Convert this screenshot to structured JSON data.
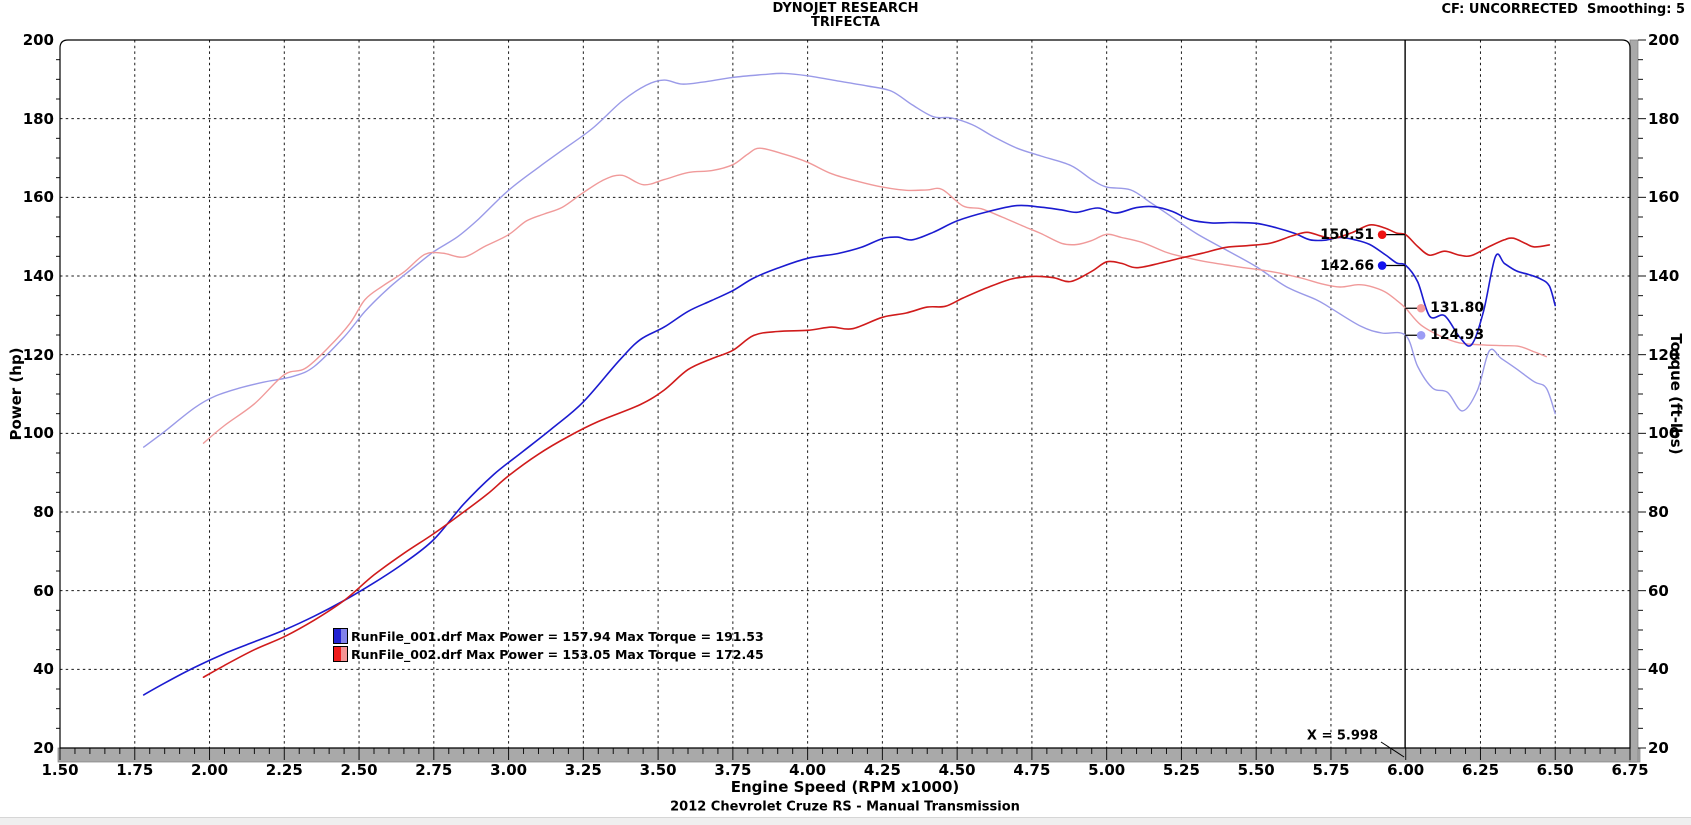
{
  "header": {
    "title1": "DYNOJET RESEARCH",
    "title2": "TRIFECTA",
    "cf": "CF: UNCORRECTED  Smoothing: 5"
  },
  "footer": {
    "xlabel": "Engine Speed (RPM x1000)",
    "caption": "2012 Chevrolet Cruze RS - Manual Transmission"
  },
  "axes": {
    "left_label": "Power (hp)",
    "right_label": "Torque (ft-lbs)",
    "x_ticks": [
      "1.50",
      "1.75",
      "2.00",
      "2.25",
      "2.50",
      "2.75",
      "3.00",
      "3.25",
      "3.50",
      "3.75",
      "4.00",
      "4.25",
      "4.50",
      "4.75",
      "5.00",
      "5.25",
      "5.50",
      "5.75",
      "6.00",
      "6.25",
      "6.50",
      "6.75"
    ],
    "y_ticks": [
      "200",
      "180",
      "160",
      "140",
      "120",
      "100",
      "80",
      "60",
      "40",
      "20"
    ],
    "x_min": 1.5,
    "x_max": 6.75,
    "y_min": 20,
    "y_max": 200,
    "x_major_step": 0.25,
    "x_minor_step": 0.05,
    "y_major_step": 20,
    "y_minor_step": 5
  },
  "legend": [
    {
      "text": "RunFile_001.drf Max Power = 157.94 Max Torque = 191.53",
      "swatch": [
        "#2222d2",
        "#8282ea"
      ]
    },
    {
      "text": "RunFile_002.drf Max Power = 153.05 Max Torque = 172.45",
      "swatch": [
        "#ee1c1c",
        "#f59494"
      ]
    }
  ],
  "cursor": {
    "x_label": "X = 5.998",
    "x_value": 5.998,
    "markers": [
      {
        "label": "150.51",
        "value": 150.51,
        "series": "RunFile_002.drf Power",
        "color": "#ee1212",
        "side": "left"
      },
      {
        "label": "142.66",
        "value": 142.66,
        "series": "RunFile_001.drf Power",
        "color": "#1212ee",
        "side": "left"
      },
      {
        "label": "131.80",
        "value": 131.8,
        "series": "RunFile_002.drf Torque",
        "color": "#f59c9c",
        "side": "right"
      },
      {
        "label": "124.93",
        "value": 124.93,
        "series": "RunFile_001.drf Torque",
        "color": "#9c9cf5",
        "side": "right"
      }
    ]
  },
  "chart_data": {
    "type": "line",
    "title": "DYNOJET RESEARCH TRIFECTA",
    "xlabel": "Engine Speed (RPM x1000)",
    "ylabel_left": "Power (hp)",
    "ylabel_right": "Torque (ft-lbs)",
    "xlim": [
      1.5,
      6.75
    ],
    "ylim": [
      20,
      200
    ],
    "grid": true,
    "cursor_x": 5.998,
    "series": [
      {
        "name": "RunFile_001.drf Power",
        "unit": "hp",
        "color": "#1b1bd0",
        "width": 1.6,
        "max": 157.94,
        "points": [
          [
            1.78,
            33.5
          ],
          [
            1.85,
            36.5
          ],
          [
            1.95,
            40.5
          ],
          [
            2.05,
            44
          ],
          [
            2.15,
            47
          ],
          [
            2.25,
            50
          ],
          [
            2.35,
            53.5
          ],
          [
            2.45,
            57.5
          ],
          [
            2.55,
            62
          ],
          [
            2.65,
            67
          ],
          [
            2.75,
            73
          ],
          [
            2.85,
            82
          ],
          [
            2.95,
            89.5
          ],
          [
            3.05,
            95.5
          ],
          [
            3.15,
            101.5
          ],
          [
            3.25,
            108
          ],
          [
            3.37,
            118.5
          ],
          [
            3.44,
            123.8
          ],
          [
            3.52,
            127
          ],
          [
            3.6,
            131
          ],
          [
            3.68,
            133.8
          ],
          [
            3.75,
            136.3
          ],
          [
            3.82,
            139.5
          ],
          [
            3.9,
            142
          ],
          [
            4.0,
            144.5
          ],
          [
            4.1,
            145.7
          ],
          [
            4.18,
            147.3
          ],
          [
            4.25,
            149.5
          ],
          [
            4.3,
            149.9
          ],
          [
            4.35,
            149.2
          ],
          [
            4.42,
            151.1
          ],
          [
            4.5,
            154
          ],
          [
            4.6,
            156.3
          ],
          [
            4.7,
            157.9
          ],
          [
            4.78,
            157.5
          ],
          [
            4.85,
            156.8
          ],
          [
            4.9,
            156.2
          ],
          [
            4.97,
            157.3
          ],
          [
            5.03,
            156
          ],
          [
            5.1,
            157.4
          ],
          [
            5.16,
            157.6
          ],
          [
            5.22,
            156.4
          ],
          [
            5.28,
            154.3
          ],
          [
            5.35,
            153.5
          ],
          [
            5.42,
            153.6
          ],
          [
            5.5,
            153.4
          ],
          [
            5.57,
            152.2
          ],
          [
            5.63,
            150.8
          ],
          [
            5.68,
            149.2
          ],
          [
            5.73,
            149.1
          ],
          [
            5.78,
            149.8
          ],
          [
            5.83,
            149.2
          ],
          [
            5.88,
            148
          ],
          [
            5.93,
            145.5
          ],
          [
            5.97,
            143.3
          ],
          [
            6.0,
            142.7
          ],
          [
            6.04,
            138.5
          ],
          [
            6.08,
            129.8
          ],
          [
            6.13,
            129.9
          ],
          [
            6.18,
            124.5
          ],
          [
            6.22,
            122.5
          ],
          [
            6.26,
            131
          ],
          [
            6.3,
            144.9
          ],
          [
            6.33,
            143.2
          ],
          [
            6.37,
            141.3
          ],
          [
            6.41,
            140.4
          ],
          [
            6.45,
            139.3
          ],
          [
            6.48,
            137.5
          ],
          [
            6.5,
            132.5
          ]
        ]
      },
      {
        "name": "RunFile_002.drf Power",
        "unit": "hp",
        "color": "#d01b1b",
        "width": 1.6,
        "max": 153.05,
        "points": [
          [
            1.98,
            38
          ],
          [
            2.05,
            41
          ],
          [
            2.15,
            45
          ],
          [
            2.25,
            48.3
          ],
          [
            2.35,
            52.5
          ],
          [
            2.45,
            57.5
          ],
          [
            2.55,
            64
          ],
          [
            2.65,
            69.5
          ],
          [
            2.75,
            74.5
          ],
          [
            2.85,
            80
          ],
          [
            2.93,
            84.6
          ],
          [
            3.0,
            89.2
          ],
          [
            3.1,
            94.7
          ],
          [
            3.2,
            99.2
          ],
          [
            3.3,
            103
          ],
          [
            3.44,
            107.3
          ],
          [
            3.52,
            111
          ],
          [
            3.6,
            116.2
          ],
          [
            3.68,
            119
          ],
          [
            3.75,
            121.1
          ],
          [
            3.82,
            124.9
          ],
          [
            3.9,
            125.9
          ],
          [
            4.0,
            126.2
          ],
          [
            4.08,
            127
          ],
          [
            4.15,
            126.6
          ],
          [
            4.25,
            129.5
          ],
          [
            4.33,
            130.6
          ],
          [
            4.4,
            132.1
          ],
          [
            4.46,
            132.3
          ],
          [
            4.52,
            134.4
          ],
          [
            4.6,
            137
          ],
          [
            4.68,
            139.2
          ],
          [
            4.75,
            139.9
          ],
          [
            4.82,
            139.6
          ],
          [
            4.88,
            138.6
          ],
          [
            4.95,
            141.2
          ],
          [
            5.0,
            143.6
          ],
          [
            5.05,
            143.2
          ],
          [
            5.1,
            142.1
          ],
          [
            5.18,
            143.3
          ],
          [
            5.25,
            144.6
          ],
          [
            5.32,
            145.8
          ],
          [
            5.4,
            147.3
          ],
          [
            5.47,
            147.7
          ],
          [
            5.55,
            148.4
          ],
          [
            5.62,
            150.2
          ],
          [
            5.67,
            151.1
          ],
          [
            5.72,
            150.1
          ],
          [
            5.76,
            149.6
          ],
          [
            5.82,
            151
          ],
          [
            5.88,
            153
          ],
          [
            5.93,
            152.2
          ],
          [
            5.97,
            150.9
          ],
          [
            6.0,
            150.5
          ],
          [
            6.04,
            147.5
          ],
          [
            6.08,
            145.3
          ],
          [
            6.13,
            146.3
          ],
          [
            6.18,
            145.3
          ],
          [
            6.22,
            145.2
          ],
          [
            6.28,
            147.5
          ],
          [
            6.33,
            149.2
          ],
          [
            6.36,
            149.6
          ],
          [
            6.4,
            148.3
          ],
          [
            6.43,
            147.4
          ],
          [
            6.48,
            147.9
          ]
        ]
      },
      {
        "name": "RunFile_001.drf Torque",
        "unit": "ft-lbs",
        "color": "#9a9ae8",
        "width": 1.4,
        "max": 191.53,
        "points": [
          [
            1.78,
            96.5
          ],
          [
            1.85,
            100.5
          ],
          [
            1.95,
            106.5
          ],
          [
            2.02,
            109.5
          ],
          [
            2.1,
            111.5
          ],
          [
            2.18,
            113
          ],
          [
            2.28,
            114.5
          ],
          [
            2.35,
            117
          ],
          [
            2.45,
            124.5
          ],
          [
            2.52,
            131
          ],
          [
            2.6,
            137
          ],
          [
            2.68,
            142
          ],
          [
            2.75,
            146.2
          ],
          [
            2.83,
            150
          ],
          [
            2.9,
            154.5
          ],
          [
            3.0,
            161.8
          ],
          [
            3.1,
            167.6
          ],
          [
            3.18,
            172
          ],
          [
            3.28,
            177.5
          ],
          [
            3.38,
            184.5
          ],
          [
            3.46,
            188.5
          ],
          [
            3.52,
            189.8
          ],
          [
            3.58,
            188.8
          ],
          [
            3.65,
            189.3
          ],
          [
            3.75,
            190.5
          ],
          [
            3.85,
            191.2
          ],
          [
            3.92,
            191.5
          ],
          [
            4.0,
            190.9
          ],
          [
            4.1,
            189.6
          ],
          [
            4.2,
            188.3
          ],
          [
            4.28,
            187
          ],
          [
            4.35,
            183.5
          ],
          [
            4.42,
            180.5
          ],
          [
            4.48,
            180.2
          ],
          [
            4.55,
            178.5
          ],
          [
            4.62,
            175.5
          ],
          [
            4.7,
            172.5
          ],
          [
            4.78,
            170.5
          ],
          [
            4.88,
            168.1
          ],
          [
            4.95,
            164.5
          ],
          [
            5.0,
            162.6
          ],
          [
            5.08,
            161.9
          ],
          [
            5.15,
            158.5
          ],
          [
            5.22,
            154.9
          ],
          [
            5.3,
            150.8
          ],
          [
            5.4,
            146.6
          ],
          [
            5.5,
            142.4
          ],
          [
            5.6,
            137.3
          ],
          [
            5.7,
            134
          ],
          [
            5.75,
            131.8
          ],
          [
            5.85,
            127.2
          ],
          [
            5.92,
            125.5
          ],
          [
            6.0,
            124.9
          ],
          [
            6.04,
            117
          ],
          [
            6.09,
            111.5
          ],
          [
            6.14,
            110.4
          ],
          [
            6.19,
            105.7
          ],
          [
            6.24,
            111
          ],
          [
            6.28,
            121
          ],
          [
            6.32,
            119
          ],
          [
            6.37,
            116.4
          ],
          [
            6.43,
            113.1
          ],
          [
            6.47,
            111.5
          ],
          [
            6.5,
            105
          ]
        ]
      },
      {
        "name": "RunFile_002.drf Torque",
        "unit": "ft-lbs",
        "color": "#f09a9a",
        "width": 1.4,
        "max": 172.45,
        "points": [
          [
            1.98,
            97.5
          ],
          [
            2.05,
            102
          ],
          [
            2.15,
            107.5
          ],
          [
            2.25,
            114.9
          ],
          [
            2.32,
            116.5
          ],
          [
            2.4,
            122
          ],
          [
            2.47,
            128
          ],
          [
            2.52,
            134
          ],
          [
            2.58,
            137.5
          ],
          [
            2.65,
            141
          ],
          [
            2.72,
            145.5
          ],
          [
            2.78,
            145.8
          ],
          [
            2.85,
            144.8
          ],
          [
            2.92,
            147.5
          ],
          [
            3.0,
            150.5
          ],
          [
            3.06,
            154
          ],
          [
            3.12,
            155.8
          ],
          [
            3.18,
            157.5
          ],
          [
            3.25,
            161.2
          ],
          [
            3.32,
            164.5
          ],
          [
            3.38,
            165.6
          ],
          [
            3.45,
            163.2
          ],
          [
            3.52,
            164.5
          ],
          [
            3.6,
            166.3
          ],
          [
            3.68,
            166.8
          ],
          [
            3.75,
            168.3
          ],
          [
            3.8,
            171
          ],
          [
            3.84,
            172.5
          ],
          [
            3.92,
            171
          ],
          [
            4.0,
            168.9
          ],
          [
            4.08,
            166
          ],
          [
            4.17,
            164
          ],
          [
            4.25,
            162.6
          ],
          [
            4.33,
            161.8
          ],
          [
            4.4,
            161.9
          ],
          [
            4.45,
            162
          ],
          [
            4.52,
            157.8
          ],
          [
            4.58,
            157.1
          ],
          [
            4.65,
            155
          ],
          [
            4.72,
            152.7
          ],
          [
            4.78,
            150.8
          ],
          [
            4.85,
            148.3
          ],
          [
            4.9,
            148
          ],
          [
            4.95,
            149
          ],
          [
            5.0,
            150.6
          ],
          [
            5.05,
            149.8
          ],
          [
            5.12,
            148.5
          ],
          [
            5.2,
            146
          ],
          [
            5.25,
            145
          ],
          [
            5.32,
            143.8
          ],
          [
            5.4,
            142.8
          ],
          [
            5.45,
            142.2
          ],
          [
            5.52,
            141.5
          ],
          [
            5.58,
            140.7
          ],
          [
            5.65,
            139.5
          ],
          [
            5.72,
            138
          ],
          [
            5.78,
            137.2
          ],
          [
            5.84,
            137.8
          ],
          [
            5.88,
            137.4
          ],
          [
            5.93,
            136
          ],
          [
            5.97,
            133.8
          ],
          [
            6.0,
            131.8
          ],
          [
            6.05,
            127.6
          ],
          [
            6.12,
            124.6
          ],
          [
            6.18,
            123
          ],
          [
            6.25,
            122.5
          ],
          [
            6.32,
            122.3
          ],
          [
            6.38,
            122.1
          ],
          [
            6.43,
            120.7
          ],
          [
            6.47,
            119.5
          ]
        ]
      }
    ]
  }
}
